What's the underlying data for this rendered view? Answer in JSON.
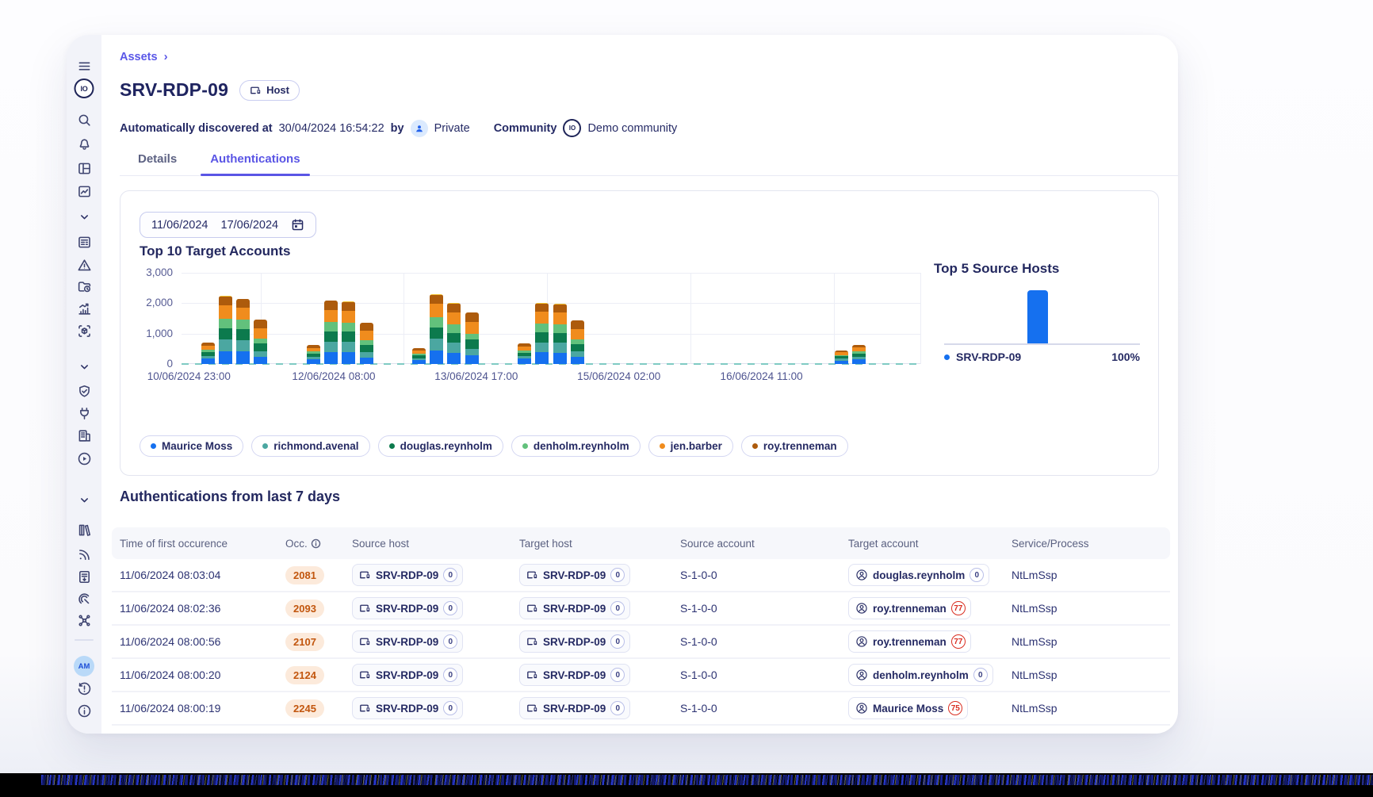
{
  "app": {
    "breadcrumb": "Assets",
    "title": "SRV-RDP-09",
    "host_badge": "Host",
    "meta": {
      "discovered_label": "Automatically discovered at",
      "discovered_value": "30/04/2024 16:54:22",
      "by_label": "by",
      "owner": "Private",
      "community_label": "Community",
      "community_value": "Demo community",
      "community_logo_text": "IO"
    },
    "tabs": [
      {
        "label": "Details",
        "active": false
      },
      {
        "label": "Authentications",
        "active": true
      }
    ],
    "sidebar": {
      "logo_text": "IO",
      "avatar_initials": "AM",
      "items": [
        {
          "name": "hamburger-menu-icon",
          "icon": "menu"
        },
        {
          "name": "search-icon",
          "icon": "search"
        },
        {
          "name": "notifications-bell-icon",
          "icon": "bell"
        },
        {
          "name": "layout-panels-icon",
          "icon": "layout"
        },
        {
          "name": "activity-chart-icon",
          "icon": "chartbox"
        },
        {
          "name": "chevron-down-icon",
          "icon": "chevron"
        },
        {
          "name": "forms-list-icon",
          "icon": "form"
        },
        {
          "name": "alerts-warning-icon",
          "icon": "warning"
        },
        {
          "name": "folder-history-icon",
          "icon": "folderclock"
        },
        {
          "name": "statistics-icon",
          "icon": "stats"
        },
        {
          "name": "asset-scan-icon",
          "icon": "scan"
        },
        {
          "name": "chevron-down-icon",
          "icon": "chevron"
        },
        {
          "name": "shield-check-icon",
          "icon": "shield"
        },
        {
          "name": "integrations-plug-icon",
          "icon": "plug"
        },
        {
          "name": "organization-building-icon",
          "icon": "building"
        },
        {
          "name": "playbooks-play-icon",
          "icon": "play"
        },
        {
          "name": "chevron-down-icon",
          "icon": "chevron"
        },
        {
          "name": "library-books-icon",
          "icon": "books"
        },
        {
          "name": "feeds-rss-icon",
          "icon": "rss"
        },
        {
          "name": "report-document-icon",
          "icon": "report"
        },
        {
          "name": "tracking-radar-icon",
          "icon": "track"
        },
        {
          "name": "topology-network-icon",
          "icon": "network"
        }
      ]
    }
  },
  "filters": {
    "date_from": "11/06/2024",
    "date_to": "17/06/2024"
  },
  "chart_data": [
    {
      "type": "bar",
      "stacked": true,
      "title": "Top 10 Target Accounts",
      "ylim": [
        0,
        3000
      ],
      "y_ticks": [
        "3,000",
        "2,000",
        "1,000",
        "0"
      ],
      "x_tick_labels": [
        "10/06/2024 23:00",
        "12/06/2024 08:00",
        "13/06/2024 17:00",
        "15/06/2024 02:00",
        "16/06/2024 11:00"
      ],
      "slots": 42,
      "grid": true,
      "legend_position": "bottom",
      "series": [
        {
          "name": "Maurice Moss",
          "color": "#1570ef"
        },
        {
          "name": "richmond.avenal",
          "color": "#4ba7a1"
        },
        {
          "name": "douglas.reynholm",
          "color": "#0c7a4d"
        },
        {
          "name": "denholm.reynholm",
          "color": "#62c17c"
        },
        {
          "name": "jen.barber",
          "color": "#f08c1d"
        },
        {
          "name": "roy.trenneman",
          "color": "#ad5b0c"
        },
        {
          "name": "other",
          "color": "#f2c12e",
          "hidden_in_legend": true
        }
      ],
      "bars": [
        {
          "slot": 1,
          "values": [
            180,
            90,
            120,
            80,
            130,
            100,
            0
          ]
        },
        {
          "slot": 2,
          "values": [
            420,
            380,
            370,
            330,
            420,
            310,
            20
          ]
        },
        {
          "slot": 3,
          "values": [
            430,
            350,
            360,
            310,
            390,
            290,
            20
          ]
        },
        {
          "slot": 4,
          "values": [
            230,
            180,
            260,
            160,
            340,
            280,
            0
          ]
        },
        {
          "slot": 7,
          "values": [
            150,
            80,
            110,
            70,
            120,
            90,
            0
          ]
        },
        {
          "slot": 8,
          "values": [
            380,
            350,
            350,
            300,
            400,
            300,
            20
          ]
        },
        {
          "slot": 9,
          "values": [
            390,
            340,
            340,
            290,
            380,
            290,
            20
          ]
        },
        {
          "slot": 10,
          "values": [
            220,
            170,
            240,
            150,
            310,
            260,
            0
          ]
        },
        {
          "slot": 13,
          "values": [
            120,
            70,
            90,
            60,
            100,
            80,
            0
          ]
        },
        {
          "slot": 14,
          "values": [
            440,
            390,
            380,
            340,
            430,
            300,
            20
          ]
        },
        {
          "slot": 15,
          "values": [
            370,
            330,
            330,
            280,
            380,
            290,
            20
          ]
        },
        {
          "slot": 16,
          "values": [
            280,
            220,
            300,
            200,
            380,
            320,
            0
          ]
        },
        {
          "slot": 19,
          "values": [
            170,
            90,
            115,
            75,
            130,
            100,
            0
          ]
        },
        {
          "slot": 20,
          "values": [
            380,
            330,
            330,
            290,
            380,
            270,
            20
          ]
        },
        {
          "slot": 21,
          "values": [
            375,
            325,
            330,
            285,
            375,
            270,
            20
          ]
        },
        {
          "slot": 22,
          "values": [
            230,
            180,
            255,
            155,
            335,
            275,
            0
          ]
        },
        {
          "slot": 37,
          "values": [
            110,
            60,
            80,
            50,
            90,
            60,
            0
          ]
        },
        {
          "slot": 38,
          "values": [
            160,
            85,
            105,
            70,
            115,
            85,
            0
          ]
        }
      ]
    },
    {
      "type": "bar",
      "title": "Top 5 Source Hosts",
      "categories": [
        "SRV-RDP-09"
      ],
      "values": [
        100
      ],
      "unit": "%",
      "bar_color": "#1570ef",
      "legend": [
        {
          "label": "SRV-RDP-09",
          "value": "100%",
          "color": "#1570ef"
        }
      ]
    }
  ],
  "section": {
    "auth_heading": "Authentications from last 7 days"
  },
  "table": {
    "columns": [
      "Time of first occurence",
      "Occ.",
      "Source host",
      "Target host",
      "Source account",
      "Target account",
      "Service/Process"
    ],
    "rows": [
      {
        "time": "11/06/2024 08:03:04",
        "occ": "2081",
        "source_host": "SRV-RDP-09",
        "source_host_badge": "0",
        "target_host": "SRV-RDP-09",
        "target_host_badge": "0",
        "source_account": "S-1-0-0",
        "target_account": "douglas.reynholm",
        "target_account_badge": "0",
        "target_badge_level": "normal",
        "service": "NtLmSsp"
      },
      {
        "time": "11/06/2024 08:02:36",
        "occ": "2093",
        "source_host": "SRV-RDP-09",
        "source_host_badge": "0",
        "target_host": "SRV-RDP-09",
        "target_host_badge": "0",
        "source_account": "S-1-0-0",
        "target_account": "roy.trenneman",
        "target_account_badge": "77",
        "target_badge_level": "high",
        "service": "NtLmSsp"
      },
      {
        "time": "11/06/2024 08:00:56",
        "occ": "2107",
        "source_host": "SRV-RDP-09",
        "source_host_badge": "0",
        "target_host": "SRV-RDP-09",
        "target_host_badge": "0",
        "source_account": "S-1-0-0",
        "target_account": "roy.trenneman",
        "target_account_badge": "77",
        "target_badge_level": "high",
        "service": "NtLmSsp"
      },
      {
        "time": "11/06/2024 08:00:20",
        "occ": "2124",
        "source_host": "SRV-RDP-09",
        "source_host_badge": "0",
        "target_host": "SRV-RDP-09",
        "target_host_badge": "0",
        "source_account": "S-1-0-0",
        "target_account": "denholm.reynholm",
        "target_account_badge": "0",
        "target_badge_level": "normal",
        "service": "NtLmSsp"
      },
      {
        "time": "11/06/2024 08:00:19",
        "occ": "2245",
        "source_host": "SRV-RDP-09",
        "source_host_badge": "0",
        "target_host": "SRV-RDP-09",
        "target_host_badge": "0",
        "source_account": "S-1-0-0",
        "target_account": "Maurice Moss",
        "target_account_badge": "75",
        "target_badge_level": "high",
        "service": "NtLmSsp"
      }
    ]
  }
}
